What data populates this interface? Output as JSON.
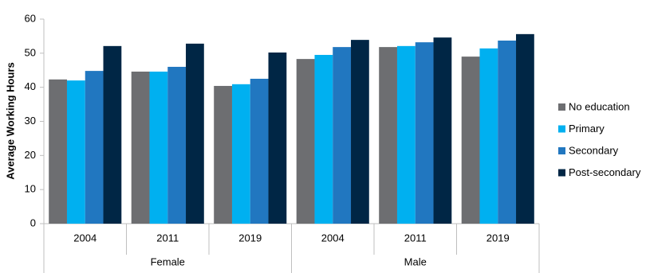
{
  "chart_data": {
    "type": "bar",
    "y_label": "Average Working Hours",
    "category_groups": [
      {
        "label": "Female",
        "categories": [
          "2004",
          "2011",
          "2019"
        ]
      },
      {
        "label": "Male",
        "categories": [
          "2004",
          "2011",
          "2019"
        ]
      }
    ],
    "series": [
      {
        "name": "No education",
        "color": "#6d6e71",
        "values": [
          42.3,
          44.6,
          40.4,
          48.3,
          51.8,
          49.0
        ]
      },
      {
        "name": "Primary",
        "color": "#00b0f0",
        "values": [
          42.0,
          44.6,
          40.9,
          49.5,
          52.1,
          51.4
        ]
      },
      {
        "name": "Secondary",
        "color": "#2177c0",
        "values": [
          44.8,
          46.0,
          42.5,
          51.8,
          53.2,
          53.7
        ]
      },
      {
        "name": "Post-secondary",
        "color": "#002645",
        "values": [
          52.1,
          52.8,
          50.2,
          53.9,
          54.6,
          55.6
        ]
      }
    ],
    "ylim": [
      0,
      60
    ],
    "yticks": [
      0,
      10,
      20,
      30,
      40,
      50,
      60
    ],
    "grid": false,
    "legend": "right"
  }
}
